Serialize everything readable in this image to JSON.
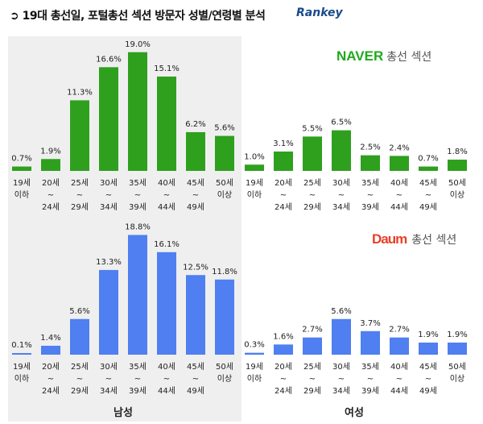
{
  "header": {
    "title": "➲ 19대 총선일, 포털총선 섹션 방문자 성별/연령별 분석",
    "brand": "Rankey"
  },
  "colors": {
    "naver": "#2ea01e",
    "daum": "#4f7ff0"
  },
  "chart_data": [
    {
      "type": "bar",
      "title": "NAVER 총선 섹션",
      "logo_brand": "NAVER",
      "logo_sub": "총선 섹션",
      "categories": [
        "19세 이하",
        "20세 ~ 24세",
        "25세 ~ 29세",
        "30세 ~ 34세",
        "35세 ~ 39세",
        "40세 ~ 44세",
        "45세 ~ 49세",
        "50세 이상"
      ],
      "series": [
        {
          "name": "남성",
          "values": [
            0.7,
            1.9,
            11.3,
            16.6,
            19.0,
            15.1,
            6.2,
            5.6
          ]
        },
        {
          "name": "여성",
          "values": [
            1.0,
            3.1,
            5.5,
            6.5,
            2.5,
            2.4,
            0.7,
            1.8
          ]
        }
      ]
    },
    {
      "type": "bar",
      "title": "Daum 총선 섹션",
      "logo_brand": "Daum",
      "logo_sub": "총선 섹션",
      "categories": [
        "19세 이하",
        "20세 ~ 24세",
        "25세 ~ 29세",
        "30세 ~ 34세",
        "35세 ~ 39세",
        "40세 ~ 44세",
        "45세 ~ 49세",
        "50세 이상"
      ],
      "series": [
        {
          "name": "남성",
          "values": [
            0.1,
            1.4,
            5.6,
            13.3,
            18.8,
            16.1,
            12.5,
            11.8
          ]
        },
        {
          "name": "여성",
          "values": [
            0.3,
            1.6,
            2.7,
            5.6,
            3.7,
            2.7,
            1.9,
            1.9
          ]
        }
      ]
    }
  ],
  "tick_lines": [
    [
      "19세",
      "이하",
      ""
    ],
    [
      "20세",
      "~",
      "24세"
    ],
    [
      "25세",
      "~",
      "29세"
    ],
    [
      "30세",
      "~",
      "34세"
    ],
    [
      "35세",
      "~",
      "39세"
    ],
    [
      "40세",
      "~",
      "44세"
    ],
    [
      "45세",
      "~",
      "49세"
    ],
    [
      "50세",
      "이상",
      ""
    ]
  ],
  "genders": [
    "남성",
    "여성"
  ]
}
